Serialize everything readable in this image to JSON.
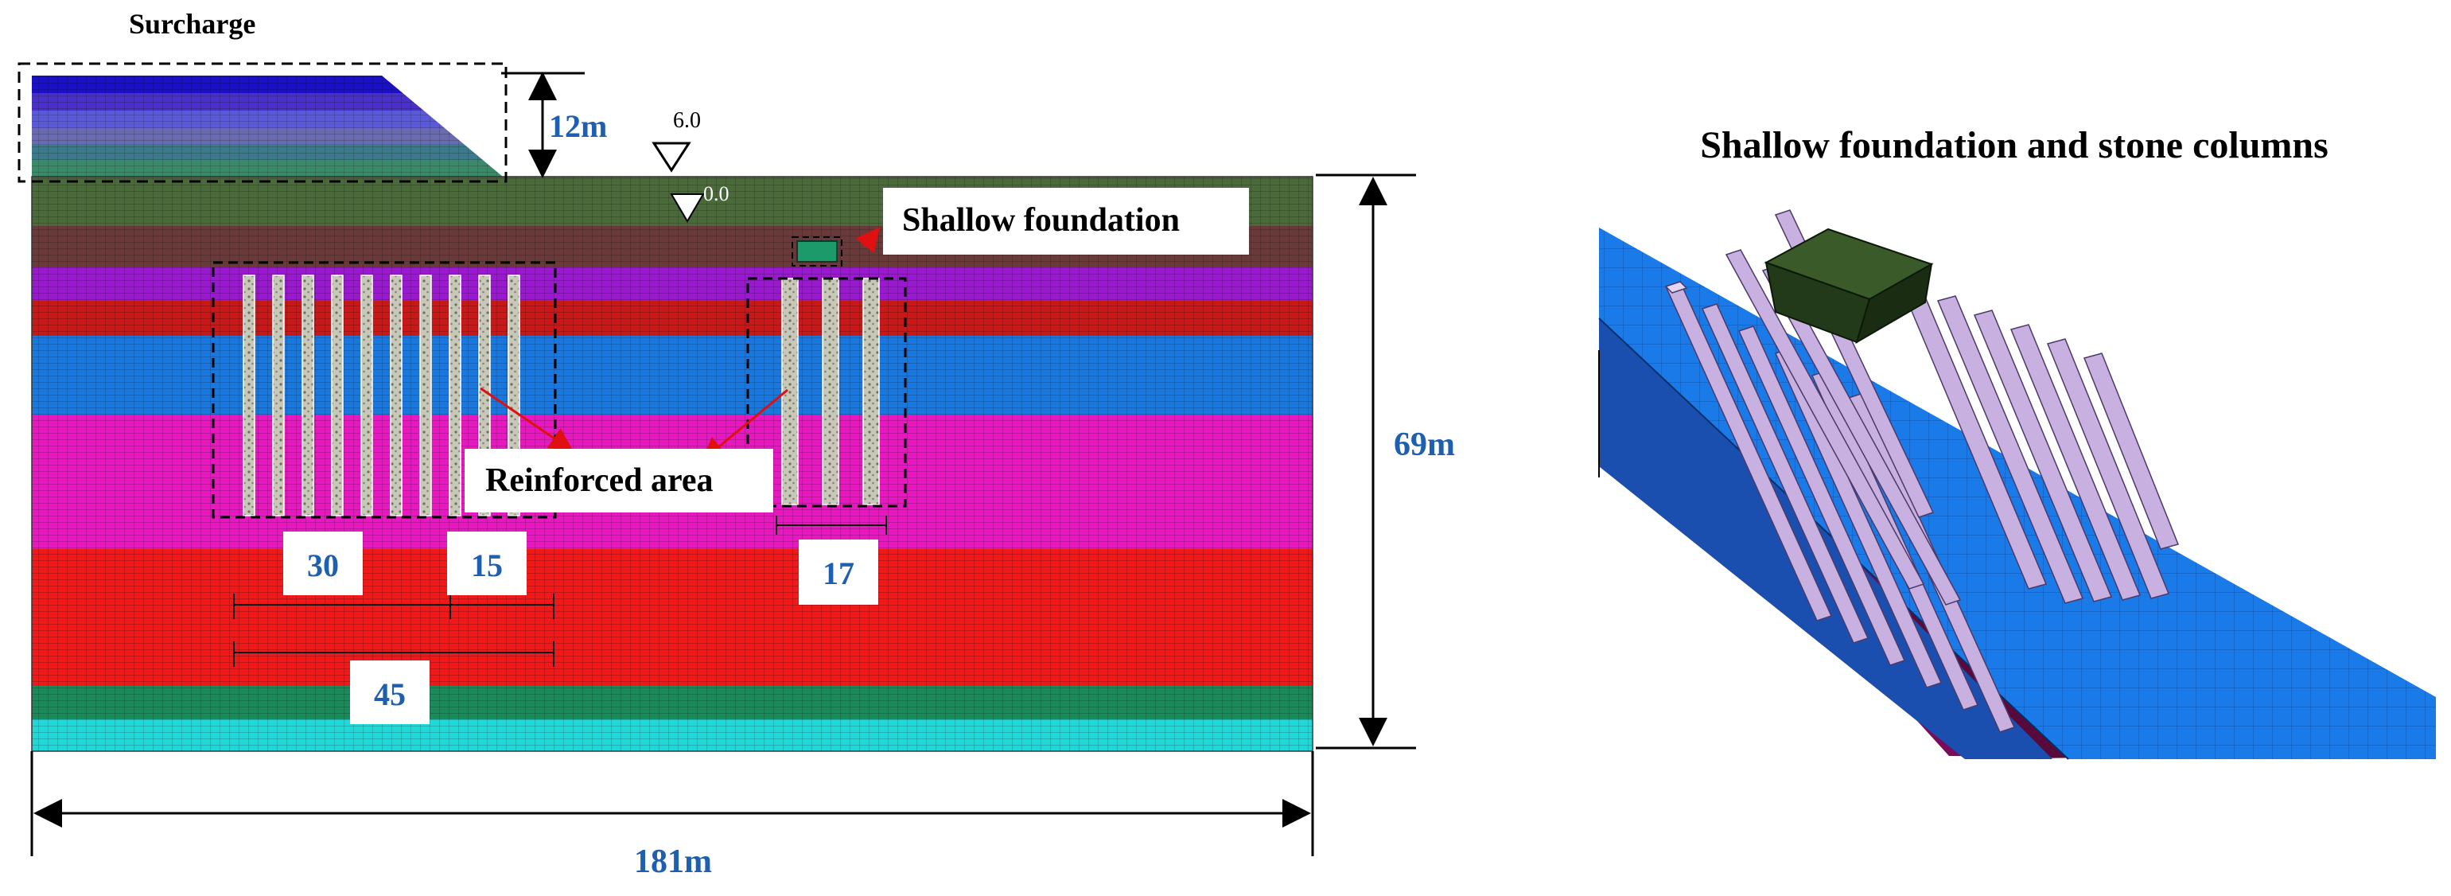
{
  "left_panel": {
    "surcharge_label": "Surcharge",
    "surcharge_height_label": "12m",
    "water_level_upper": "6.0",
    "water_level_lower": "0.0",
    "shallow_foundation_label": "Shallow foundation",
    "reinforced_area_label": "Reinforced area",
    "dim_spacing_30": "30",
    "dim_spacing_15": "15",
    "dim_spacing_45": "45",
    "dim_spacing_17": "17",
    "height_label": "69m",
    "width_label": "181m"
  },
  "right_panel": {
    "title": "Shallow foundation and stone columns"
  },
  "colors": {
    "soil_layers": [
      "#4a6a3a",
      "#6a3a3a",
      "#9a18d0",
      "#c81818",
      "#1878e0",
      "#e818c0",
      "#f01818",
      "#1a8a5a",
      "#20d8d8"
    ],
    "label_blue": "#1f5fb0",
    "foundation": "#1c9a6a",
    "column": "#c8c8b8",
    "column_3d": "#c8b0e0",
    "foundation_3d": "#223a1a",
    "base_3d": "#1a7ae8",
    "arrow_red": "#e01010"
  }
}
